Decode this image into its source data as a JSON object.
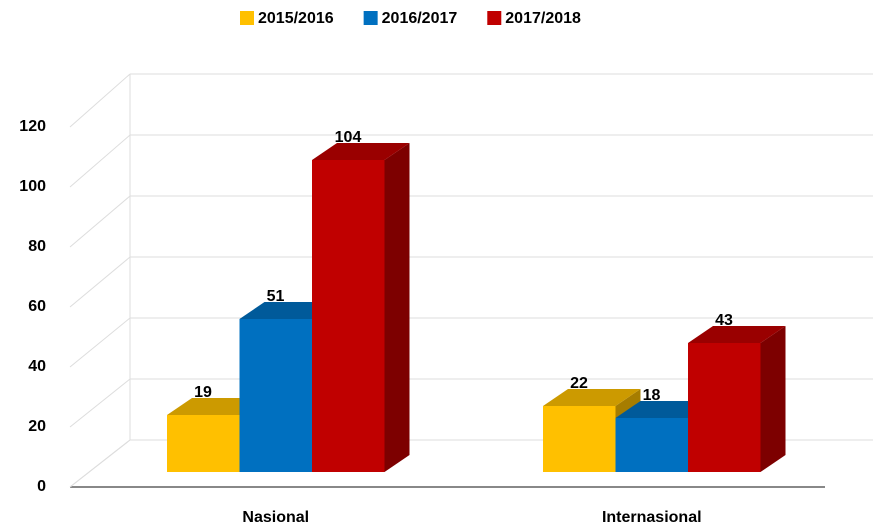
{
  "chart_data": {
    "type": "bar3d",
    "categories": [
      "Nasional",
      "Internasional"
    ],
    "series": [
      {
        "name": "2015/2016",
        "color": "#ffc000",
        "values": [
          19,
          22
        ]
      },
      {
        "name": "2016/2017",
        "color": "#0070c0",
        "values": [
          51,
          18
        ]
      },
      {
        "name": "2017/2018",
        "color": "#c00000",
        "values": [
          104,
          43
        ]
      }
    ],
    "ylim": [
      0,
      120
    ],
    "yticks": [
      0,
      20,
      40,
      60,
      80,
      100,
      120
    ],
    "grid": true,
    "legend": "top"
  }
}
